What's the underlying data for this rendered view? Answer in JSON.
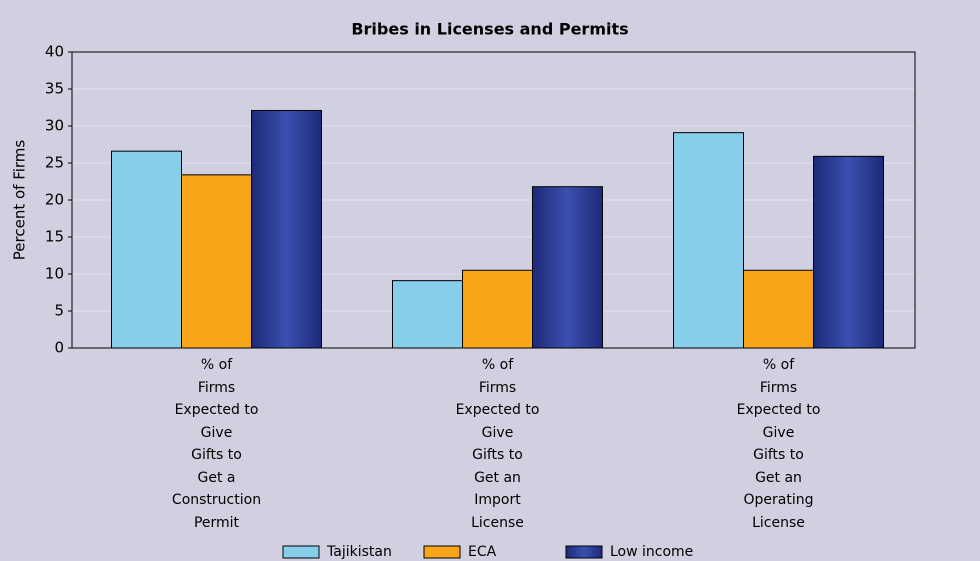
{
  "chart_data": {
    "type": "bar",
    "title": "Bribes in Licenses and Permits",
    "ylabel": "Percent of Firms",
    "categories": [
      "% of\nFirms\nExpected to\nGive\nGifts to\nGet a\nConstruction\nPermit",
      "% of\nFirms\nExpected to\nGive\nGifts to\nGet an\nImport\nLicense",
      "% of\nFirms\nExpected to\nGive\nGifts to\nGet an\nOperating\nLicense"
    ],
    "series": [
      {
        "name": "Tajikistan",
        "color": "#87ceeb",
        "values": [
          26.6,
          9.1,
          29.1
        ]
      },
      {
        "name": "ECA",
        "color": "#f9a51a",
        "values": [
          23.4,
          10.5,
          10.5
        ]
      },
      {
        "name": "Low income",
        "color": "#2b3a94",
        "values": [
          32.1,
          21.8,
          25.9
        ]
      }
    ],
    "ylim": [
      0,
      40
    ],
    "yticks": [
      0,
      5,
      10,
      15,
      20,
      25,
      30,
      35,
      40
    ],
    "grid": true,
    "legend": "bottom"
  }
}
